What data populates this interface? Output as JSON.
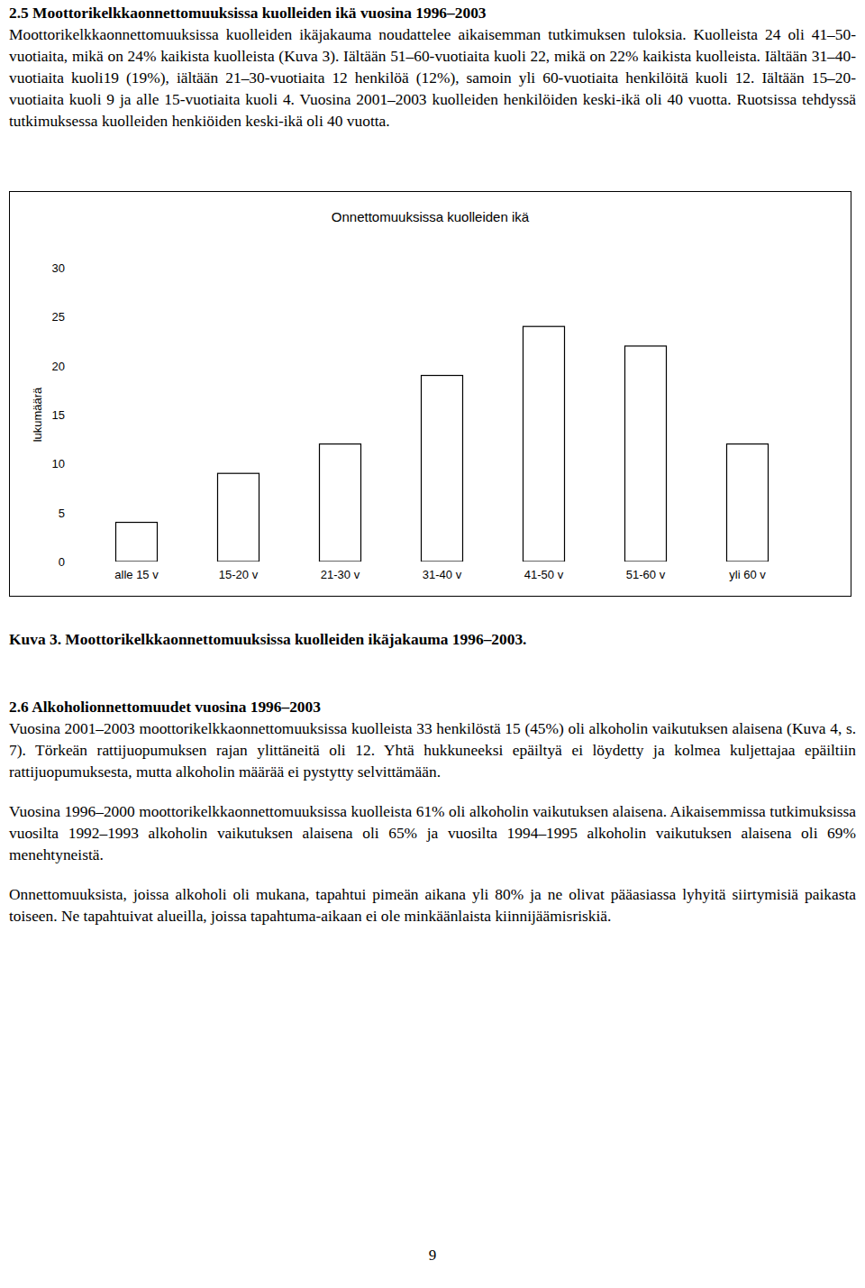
{
  "sections": [
    {
      "heading": "2.5 Moottorikelkkaonnettomuuksissa kuolleiden ikä vuosina 1996–2003",
      "paragraphs": [
        "Moottorikelkkaonnettomuuksissa kuolleiden ikäjakauma noudattelee aikaisemman tutkimuksen tuloksia. Kuolleista 24 oli 41–50-vuotiaita, mikä on 24% kaikista kuolleista (Kuva 3). Iältään 51–60-vuotiaita kuoli 22, mikä on 22% kaikista kuolleista. Iältään 31–40-vuotiaita kuoli19 (19%), iältään 21–30-vuotiaita 12 henkilöä (12%), samoin yli 60-vuotiaita henkilöitä kuoli 12. Iältään 15–20-vuotiaita kuoli 9 ja alle 15-vuotiaita kuoli 4. Vuosina 2001–2003 kuolleiden henkilöiden keski-ikä oli 40 vuotta. Ruotsissa tehdyssä tutkimuksessa kuolleiden henkiöiden keski-ikä oli 40 vuotta."
      ]
    },
    {
      "heading": "2.6 Alkoholionnettomuudet vuosina 1996–2003",
      "paragraphs": [
        "Vuosina 2001–2003 moottorikelkkaonnettomuuksissa kuolleista 33 henkilöstä 15 (45%) oli alkoholin vaikutuksen alaisena (Kuva 4, s. 7). Törkeän rattijuopumuksen rajan ylittäneitä oli 12. Yhtä hukkuneeksi epäiltyä ei löydetty ja kolmea kuljettajaa epäiltiin rattijuopumuksesta, mutta alkoholin määrää ei pystytty selvittämään.",
        "Vuosina 1996–2000 moottorikelkkaonnettomuuksissa kuolleista 61% oli alkoholin vaikutuksen alaisena. Aikaisemmissa tutkimuksissa vuosilta 1992–1993 alkoholin vaikutuksen alaisena oli 65% ja vuosilta 1994–1995 alkoholin vaikutuksen alaisena oli 69% menehtyneistä.",
        "Onnettomuuksista, joissa alkoholi oli mukana, tapahtui pimeän aikana yli 80% ja ne olivat pääasiassa lyhyitä siirtymisiä paikasta toiseen. Ne tapahtuivat alueilla, joissa tapahtuma-aikaan ei ole minkäänlaista kiinnijäämisriskiä."
      ]
    }
  ],
  "chart_data": {
    "type": "bar",
    "title": "Onnettomuuksissa kuolleiden ikä",
    "y_label": "lukumäärä",
    "categories": [
      "alle 15 v",
      "15-20 v",
      "21-30 v",
      "31-40 v",
      "41-50 v",
      "51-60 v",
      "yli 60 v"
    ],
    "values": [
      4,
      9,
      12,
      19,
      24,
      22,
      12
    ],
    "color": "#ffffff",
    "ylim": [
      0,
      30
    ],
    "yticks": [
      0,
      5,
      10,
      15,
      20,
      25,
      30
    ],
    "grid": false
  },
  "caption": "Kuva 3. Moottorikelkkaonnettomuuksissa kuolleiden ikäjakauma 1996–2003.",
  "page_number": "9"
}
